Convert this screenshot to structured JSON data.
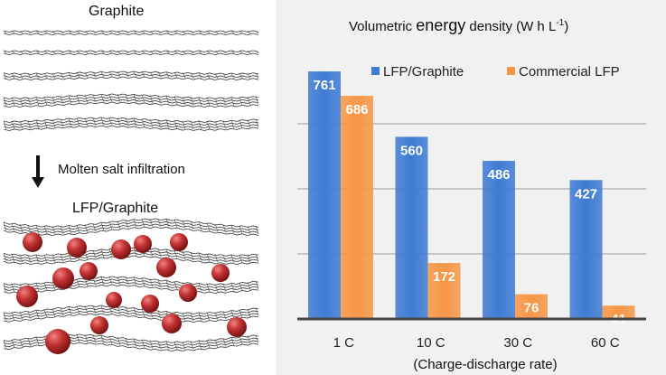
{
  "left_panel": {
    "top_label": "Graphite",
    "process_label": "Molten salt infiltration",
    "bottom_label": "LFP/Graphite"
  },
  "chart_data": {
    "type": "bar",
    "title_pre": "Volumetric ",
    "title_bold": "energy",
    "title_post": " density (W h L",
    "title_sup": "-1",
    "title_end": ")",
    "categories": [
      "1 C",
      "10 C",
      "30 C",
      "60 C"
    ],
    "series": [
      {
        "name": "LFP/Graphite",
        "color": "#3f7bd3",
        "values": [
          761,
          560,
          486,
          427
        ]
      },
      {
        "name": "Commercial LFP",
        "color": "#f79646",
        "values": [
          686,
          172,
          76,
          41
        ]
      }
    ],
    "xlabel": "(Charge-discharge rate)",
    "ylim": [
      0,
      800
    ],
    "grid": true,
    "legend": "top-right",
    "colors": {
      "background": "#f1f1f1",
      "grid": "#9a9a9a",
      "axis": "#444444"
    }
  }
}
